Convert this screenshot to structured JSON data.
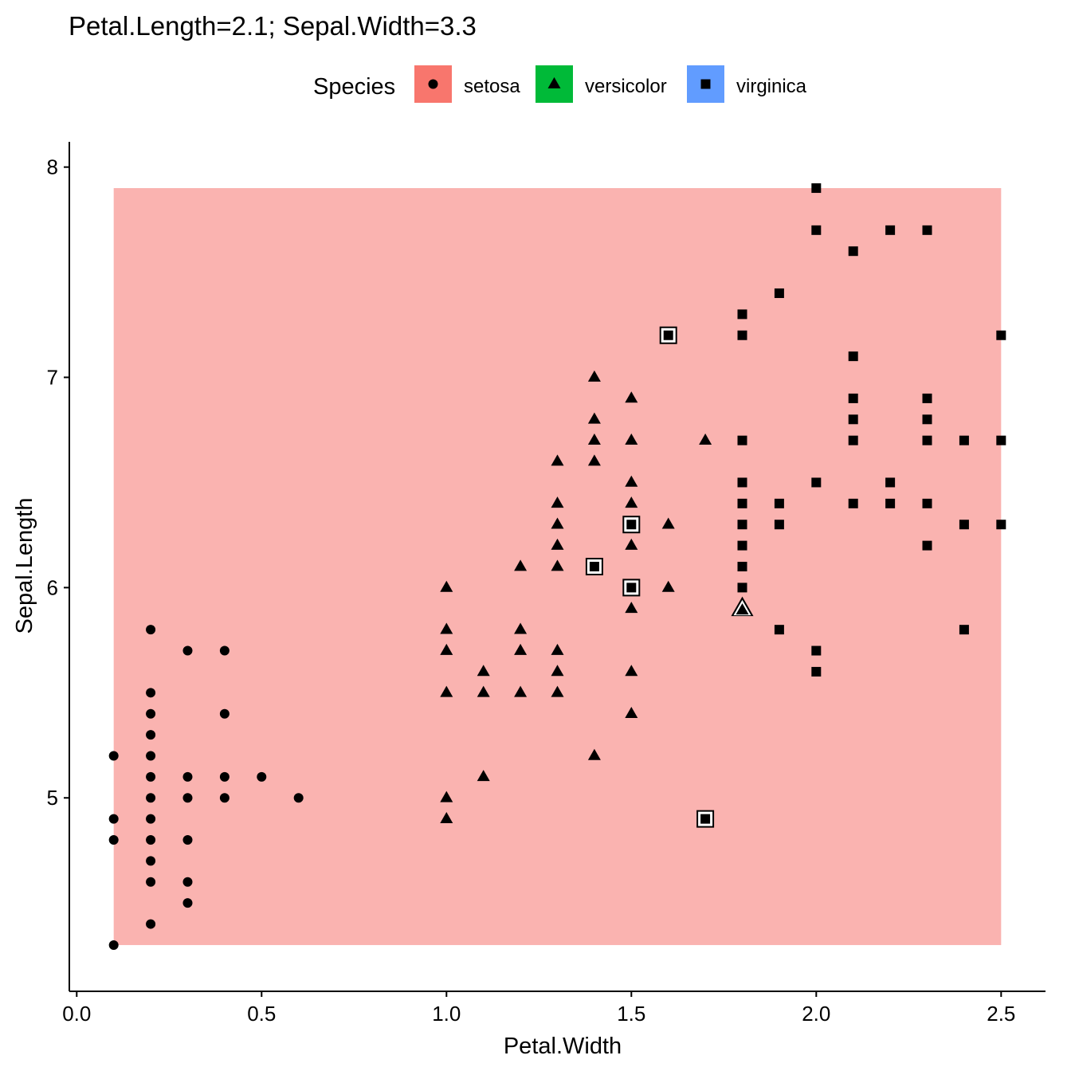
{
  "chart_data": {
    "type": "scatter",
    "title": "Petal.Length=2.1; Sepal.Width=3.3",
    "xlabel": "Petal.Width",
    "ylabel": "Sepal.Length",
    "xlim": [
      -0.02,
      2.62
    ],
    "ylim": [
      4.08,
      8.12
    ],
    "x_ticks": [
      0.0,
      0.5,
      1.0,
      1.5,
      2.0,
      2.5
    ],
    "x_tick_labels": [
      "0.0",
      "0.5",
      "1.0",
      "1.5",
      "2.0",
      "2.5"
    ],
    "y_ticks": [
      5,
      6,
      7,
      8
    ],
    "y_tick_labels": [
      "5",
      "6",
      "7",
      "8"
    ],
    "grid": false,
    "legend": {
      "title": "Species",
      "position": "top",
      "entries": [
        "setosa",
        "versicolor",
        "virginica"
      ]
    },
    "background_region": {
      "class": "setosa",
      "color": "#F8766D",
      "x_range": [
        0.1,
        2.5
      ],
      "y_range": [
        4.3,
        7.9
      ]
    },
    "colors": {
      "setosa": "#F8766D",
      "versicolor": "#00BA38",
      "virginica": "#619CFF",
      "region_fill": "#FAB3B0"
    },
    "series": [
      {
        "name": "setosa",
        "marker": "circle",
        "points": [
          [
            0.1,
            5.2
          ],
          [
            0.1,
            4.9
          ],
          [
            0.1,
            4.8
          ],
          [
            0.1,
            4.3
          ],
          [
            0.2,
            5.8
          ],
          [
            0.2,
            5.5
          ],
          [
            0.2,
            5.4
          ],
          [
            0.2,
            5.3
          ],
          [
            0.2,
            5.2
          ],
          [
            0.2,
            5.1
          ],
          [
            0.2,
            5.0
          ],
          [
            0.2,
            4.9
          ],
          [
            0.2,
            4.8
          ],
          [
            0.2,
            4.7
          ],
          [
            0.2,
            4.6
          ],
          [
            0.2,
            4.4
          ],
          [
            0.3,
            5.7
          ],
          [
            0.3,
            5.1
          ],
          [
            0.3,
            5.0
          ],
          [
            0.3,
            4.8
          ],
          [
            0.3,
            4.6
          ],
          [
            0.3,
            4.5
          ],
          [
            0.4,
            5.7
          ],
          [
            0.4,
            5.4
          ],
          [
            0.4,
            5.1
          ],
          [
            0.4,
            5.0
          ],
          [
            0.5,
            5.1
          ],
          [
            0.6,
            5.0
          ]
        ]
      },
      {
        "name": "versicolor",
        "marker": "triangle",
        "points": [
          [
            1.0,
            6.0
          ],
          [
            1.0,
            5.8
          ],
          [
            1.0,
            5.7
          ],
          [
            1.0,
            5.5
          ],
          [
            1.0,
            5.0
          ],
          [
            1.0,
            4.9
          ],
          [
            1.1,
            5.6
          ],
          [
            1.1,
            5.5
          ],
          [
            1.1,
            5.1
          ],
          [
            1.2,
            6.1
          ],
          [
            1.2,
            5.8
          ],
          [
            1.2,
            5.7
          ],
          [
            1.2,
            5.5
          ],
          [
            1.3,
            6.6
          ],
          [
            1.3,
            6.4
          ],
          [
            1.3,
            6.3
          ],
          [
            1.3,
            6.2
          ],
          [
            1.3,
            6.1
          ],
          [
            1.3,
            5.7
          ],
          [
            1.3,
            5.6
          ],
          [
            1.3,
            5.5
          ],
          [
            1.4,
            7.0
          ],
          [
            1.4,
            6.8
          ],
          [
            1.4,
            6.7
          ],
          [
            1.4,
            6.6
          ],
          [
            1.4,
            5.2
          ],
          [
            1.5,
            6.9
          ],
          [
            1.5,
            6.7
          ],
          [
            1.5,
            6.5
          ],
          [
            1.5,
            6.4
          ],
          [
            1.5,
            6.2
          ],
          [
            1.5,
            5.9
          ],
          [
            1.5,
            5.6
          ],
          [
            1.5,
            5.4
          ],
          [
            1.6,
            6.3
          ],
          [
            1.6,
            6.0
          ],
          [
            1.7,
            6.7
          ]
        ]
      },
      {
        "name": "virginica",
        "marker": "square",
        "points": [
          [
            1.8,
            7.3
          ],
          [
            1.8,
            7.2
          ],
          [
            1.8,
            6.7
          ],
          [
            1.8,
            6.5
          ],
          [
            1.8,
            6.4
          ],
          [
            1.8,
            6.3
          ],
          [
            1.8,
            6.2
          ],
          [
            1.8,
            6.1
          ],
          [
            1.8,
            6.0
          ],
          [
            1.9,
            7.4
          ],
          [
            1.9,
            6.4
          ],
          [
            1.9,
            6.3
          ],
          [
            1.9,
            5.8
          ],
          [
            2.0,
            7.9
          ],
          [
            2.0,
            7.7
          ],
          [
            2.0,
            6.5
          ],
          [
            2.0,
            5.7
          ],
          [
            2.0,
            5.6
          ],
          [
            2.1,
            7.6
          ],
          [
            2.1,
            7.1
          ],
          [
            2.1,
            6.9
          ],
          [
            2.1,
            6.8
          ],
          [
            2.1,
            6.7
          ],
          [
            2.1,
            6.4
          ],
          [
            2.2,
            7.7
          ],
          [
            2.2,
            6.5
          ],
          [
            2.2,
            6.4
          ],
          [
            2.3,
            7.7
          ],
          [
            2.3,
            6.9
          ],
          [
            2.3,
            6.8
          ],
          [
            2.3,
            6.7
          ],
          [
            2.3,
            6.4
          ],
          [
            2.3,
            6.2
          ],
          [
            2.4,
            6.7
          ],
          [
            2.4,
            6.3
          ],
          [
            2.4,
            5.8
          ],
          [
            2.5,
            7.2
          ],
          [
            2.5,
            6.7
          ],
          [
            2.5,
            6.3
          ]
        ]
      }
    ],
    "highlighted_points": [
      {
        "species": "virginica",
        "marker": "square",
        "x": 1.6,
        "y": 7.2
      },
      {
        "species": "virginica",
        "marker": "square",
        "x": 1.5,
        "y": 6.3
      },
      {
        "species": "virginica",
        "marker": "square",
        "x": 1.4,
        "y": 6.1
      },
      {
        "species": "virginica",
        "marker": "square",
        "x": 1.5,
        "y": 6.0
      },
      {
        "species": "virginica",
        "marker": "square",
        "x": 1.7,
        "y": 4.9
      },
      {
        "species": "versicolor",
        "marker": "triangle",
        "x": 1.8,
        "y": 5.9
      }
    ]
  }
}
